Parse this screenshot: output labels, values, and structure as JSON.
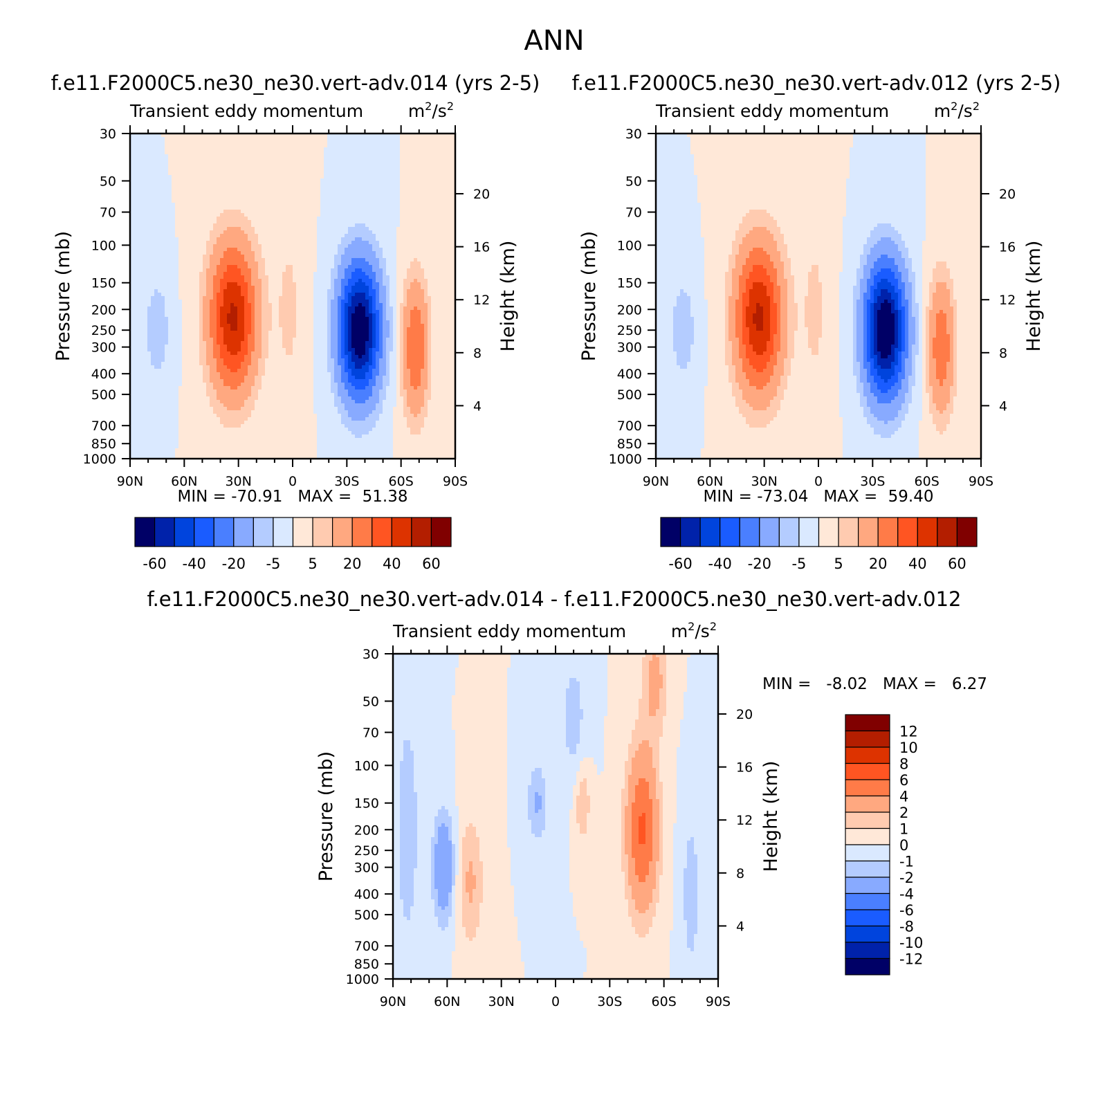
{
  "figure": {
    "title": "ANN"
  },
  "scale": {
    "pressure_ticks": [
      30,
      50,
      70,
      100,
      150,
      200,
      250,
      300,
      400,
      500,
      700,
      850,
      1000
    ],
    "height_ticks": [
      4,
      8,
      12,
      16,
      20
    ],
    "lat_tick_values": [
      90,
      60,
      30,
      0,
      -30,
      -60,
      -90
    ],
    "lat_tick_labels": [
      "90N",
      "60N",
      "30N",
      "0",
      "30S",
      "60S",
      "90S"
    ],
    "ylabel_left": "Pressure (mb)",
    "ylabel_right": "Height (km)",
    "variable": "Transient eddy momentum",
    "units_base1": "m",
    "units_exp1": "2",
    "units_mid": "/s",
    "units_exp2": "2"
  },
  "colors": {
    "main": [
      "#000066",
      "#0022aa",
      "#0044dd",
      "#1a5cff",
      "#4a7fff",
      "#88aaff",
      "#b4ccff",
      "#dae9ff",
      "#ffe8d8",
      "#ffcbb0",
      "#ffa880",
      "#ff7b48",
      "#ff5522",
      "#dd3300",
      "#b31e00",
      "#800000"
    ],
    "diff": [
      "#000066",
      "#0022aa",
      "#0044dd",
      "#1a5cff",
      "#4a7fff",
      "#88aaff",
      "#b4ccff",
      "#dae9ff",
      "#ffe8d8",
      "#ffcbb0",
      "#ffa880",
      "#ff7b48",
      "#ff5522",
      "#dd3300",
      "#b31e00",
      "#800000"
    ]
  },
  "chart_data": [
    {
      "type": "heatmap",
      "panel_title": "f.e11.F2000C5.ne30_ne30.vert-adv.014 (yrs 2-5)",
      "subtitle": "Transient eddy momentum",
      "min_label": "MIN =",
      "min_value": "-70.91",
      "max_label": "MAX =",
      "max_value": "51.38",
      "levels": [
        -70,
        -60,
        -50,
        -40,
        -30,
        -20,
        -10,
        -5,
        0,
        5,
        10,
        20,
        30,
        40,
        50,
        60,
        70
      ],
      "colorbar_labels": [
        "-60",
        "-40",
        "-20",
        "-5",
        "5",
        "20",
        "40",
        "60"
      ],
      "features": [
        {
          "lat": 33,
          "p": 220,
          "amp": 52,
          "sig_lat": 9,
          "sig_logp": 0.55
        },
        {
          "lat": -37,
          "p": 250,
          "amp": -71,
          "sig_lat": 8,
          "sig_logp": 0.5
        },
        {
          "lat": -68,
          "p": 300,
          "amp": 30,
          "sig_lat": 5,
          "sig_logp": 0.5
        },
        {
          "lat": 75,
          "p": 250,
          "amp": -9,
          "sig_lat": 5,
          "sig_logp": 0.4
        },
        {
          "lat": 2,
          "p": 200,
          "amp": 6,
          "sig_lat": 6,
          "sig_logp": 0.8
        }
      ]
    },
    {
      "type": "heatmap",
      "panel_title": "f.e11.F2000C5.ne30_ne30.vert-adv.012 (yrs 2-5)",
      "subtitle": "Transient eddy momentum",
      "min_label": "MIN =",
      "min_value": "-73.04",
      "max_label": "MAX =",
      "max_value": "59.40",
      "levels": [
        -70,
        -60,
        -50,
        -40,
        -30,
        -20,
        -10,
        -5,
        0,
        5,
        10,
        20,
        30,
        40,
        50,
        60,
        70
      ],
      "colorbar_labels": [
        "-60",
        "-40",
        "-20",
        "-5",
        "5",
        "20",
        "40",
        "60"
      ],
      "features": [
        {
          "lat": 33,
          "p": 220,
          "amp": 52,
          "sig_lat": 9,
          "sig_logp": 0.55
        },
        {
          "lat": -37,
          "p": 250,
          "amp": -73,
          "sig_lat": 8,
          "sig_logp": 0.5
        },
        {
          "lat": -68,
          "p": 300,
          "amp": 28,
          "sig_lat": 5,
          "sig_logp": 0.5
        },
        {
          "lat": 75,
          "p": 250,
          "amp": -9,
          "sig_lat": 5,
          "sig_logp": 0.4
        },
        {
          "lat": 2,
          "p": 200,
          "amp": 6,
          "sig_lat": 6,
          "sig_logp": 0.8
        }
      ]
    },
    {
      "type": "heatmap",
      "panel_title": "f.e11.F2000C5.ne30_ne30.vert-adv.014 - f.e11.F2000C5.ne30_ne30.vert-adv.012",
      "subtitle": "Transient eddy momentum",
      "min_label": "MIN =",
      "min_value": "-8.02",
      "max_label": "MAX =",
      "max_value": "6.27",
      "levels": [
        -14,
        -12,
        -10,
        -8,
        -6,
        -4,
        -2,
        -1,
        0,
        1,
        2,
        4,
        6,
        8,
        10,
        12,
        14
      ],
      "colorbar_labels": [
        "12",
        "10",
        "8",
        "6",
        "4",
        "2",
        "1",
        "0",
        "-1",
        "-2",
        "-4",
        "-6",
        "-8",
        "-10",
        "-12"
      ],
      "features": [
        {
          "lat": -48,
          "p": 200,
          "amp": 6.3,
          "sig_lat": 6,
          "sig_logp": 0.6
        },
        {
          "lat": -55,
          "p": 40,
          "amp": 2.5,
          "sig_lat": 5,
          "sig_logp": 0.4
        },
        {
          "lat": 62,
          "p": 300,
          "amp": -4,
          "sig_lat": 4,
          "sig_logp": 0.4
        },
        {
          "lat": 47,
          "p": 350,
          "amp": 2.2,
          "sig_lat": 5,
          "sig_logp": 0.5
        },
        {
          "lat": 10,
          "p": 150,
          "amp": -2.2,
          "sig_lat": 4,
          "sig_logp": 0.3
        },
        {
          "lat": -15,
          "p": 150,
          "amp": 2,
          "sig_lat": 3,
          "sig_logp": 0.3
        },
        {
          "lat": -10,
          "p": 60,
          "amp": -1.5,
          "sig_lat": 5,
          "sig_logp": 0.5
        },
        {
          "lat": -75,
          "p": 400,
          "amp": -1.5,
          "sig_lat": 4,
          "sig_logp": 0.7
        },
        {
          "lat": 82,
          "p": 200,
          "amp": -1.4,
          "sig_lat": 6,
          "sig_logp": 1.2
        }
      ]
    }
  ]
}
